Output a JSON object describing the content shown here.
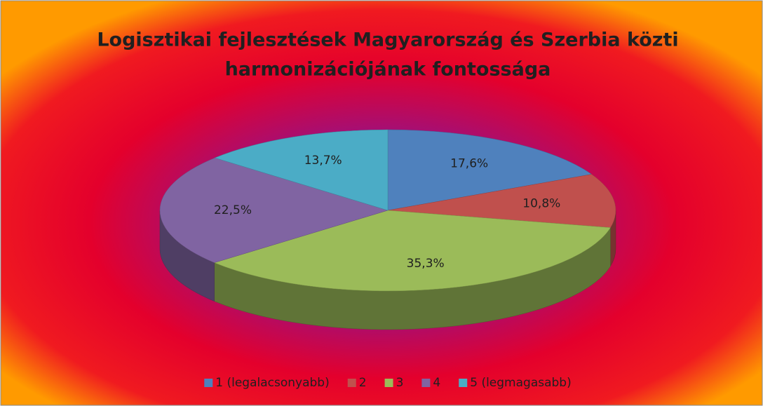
{
  "chart_data": {
    "type": "pie3d",
    "title": [
      "Logisztikai fejlesztések Magyarország és Szerbia közti",
      "harmonizációjának fontossága"
    ],
    "categories": [
      "1 (legalacsonyabb)",
      "2",
      "3",
      "4",
      "5 (legmagasabb)"
    ],
    "values": [
      17.6,
      10.8,
      35.3,
      22.5,
      13.7
    ],
    "value_labels": [
      "17,6%",
      "10,8%",
      "35,3%",
      "22,5%",
      "13,7%"
    ],
    "colors": [
      "#4f81bd",
      "#c0504d",
      "#9bbb59",
      "#8064a2",
      "#4bacc6"
    ],
    "legend": "bottom"
  }
}
